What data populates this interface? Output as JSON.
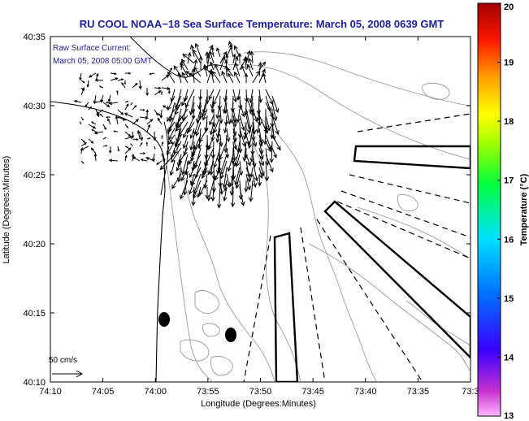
{
  "title": "RU COOL  NOAA−18  Sea Surface Temperature:  March 05, 2008 0639 GMT",
  "inset": {
    "line1": "Raw Surface Current:",
    "line2": "March 05, 2008 05:00 GMT"
  },
  "scale_label": "50 cm/s",
  "axes": {
    "xlabel": "Longitude (Degrees:Minutes)",
    "ylabel": "Latitude (Degrees:Minutes)",
    "x_ticks": [
      "74:10",
      "74:05",
      "74:00",
      "73:55",
      "73:50",
      "73:45",
      "73:40",
      "73:35",
      "73:3"
    ],
    "y_ticks": [
      "40:35",
      "40:30",
      "40:25",
      "40:20",
      "40:15",
      "40:10"
    ]
  },
  "colorbar": {
    "label": "Temperature (°C)",
    "ticks": [
      "20",
      "19",
      "18",
      "17",
      "16",
      "15",
      "14",
      "13"
    ],
    "range": [
      13,
      20
    ]
  },
  "colors": {
    "title": "#1c1c9c",
    "contour": "#9a9a9a",
    "vector": "#000000"
  }
}
